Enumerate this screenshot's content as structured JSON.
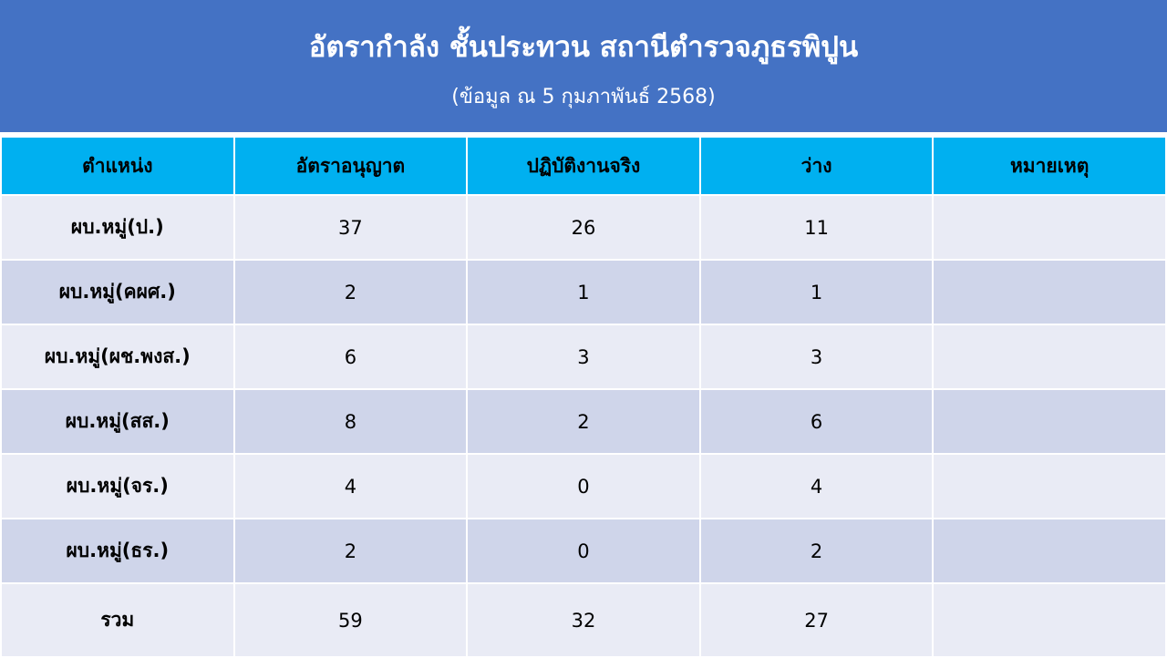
{
  "header": {
    "title": "อัตรากำลัง ชั้นประทวน สถานีตำรวจภูธรพิปูน",
    "subtitle": "(ข้อมูล ณ 5 กุมภาพันธ์ 2568)"
  },
  "table": {
    "columns": [
      "ตำแหน่ง",
      "อัตราอนุญาต",
      "ปฏิบัติงานจริง",
      "ว่าง",
      "หมายเหตุ"
    ],
    "rows": [
      [
        "ผบ.หมู่(ป.)",
        "37",
        "26",
        "11",
        ""
      ],
      [
        "ผบ.หมู่(คผศ.)",
        "2",
        "1",
        "1",
        ""
      ],
      [
        "ผบ.หมู่(ผช.พงส.)",
        "6",
        "3",
        "3",
        ""
      ],
      [
        "ผบ.หมู่(สส.)",
        "8",
        "2",
        "6",
        ""
      ],
      [
        "ผบ.หมู่(จร.)",
        "4",
        "0",
        "4",
        ""
      ],
      [
        "ผบ.หมู่(ธร.)",
        "2",
        "0",
        "2",
        ""
      ],
      [
        "รวม",
        "59",
        "32",
        "27",
        ""
      ]
    ]
  },
  "colors": {
    "banner": "#4472C4",
    "header_row": "#00B0F0",
    "row_light": "#E9EBF5",
    "row_dark": "#CFD5EA"
  }
}
